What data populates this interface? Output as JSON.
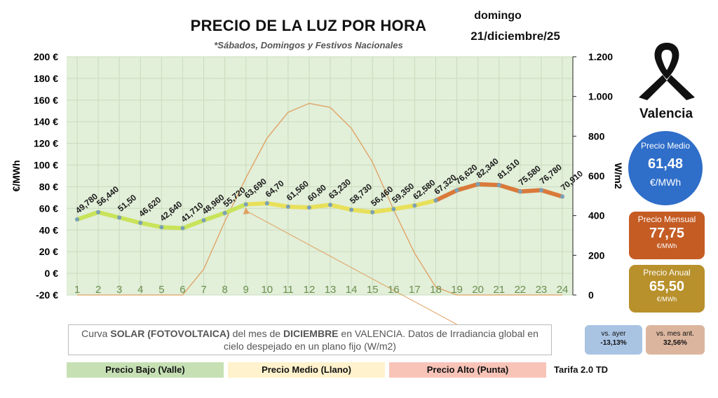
{
  "header": {
    "title": "PRECIO DE LA LUZ POR HORA",
    "subtitle": "*Sábados, Domingos y Festivos Nacionales",
    "day": "domingo",
    "date": "21/diciembre/25",
    "city": "Valencia"
  },
  "summary": {
    "medio_label": "Precio Medio",
    "medio_value": "61,48",
    "medio_unit": "€/MWh",
    "mensual_label": "Precio Mensual",
    "mensual_value": "77,75",
    "mensual_unit": "€/MWh",
    "anual_label": "Precio Anual",
    "anual_value": "65,50",
    "anual_unit": "€/MWh"
  },
  "comparison": {
    "ayer_label": "vs. ayer",
    "ayer_value": "-13,13%",
    "mes_label": "vs. mes ant.",
    "mes_value": "32,56%"
  },
  "note": {
    "p1": "Curva ",
    "b1": "SOLAR (FOTOVOLTAICA)",
    "p2": " del mes de ",
    "b2": "DICIEMBRE",
    "p3": " en VALENCIA. Datos de Irradiancia global en",
    "line2": "cielo despejado en un plano fijo (W/m2)"
  },
  "legend": {
    "bajo": "Precio Bajo (Valle)",
    "medio": "Precio Medio (Llano)",
    "alto": "Precio Alto (Punta)",
    "tarifa": "Tarifa 2.0 TD"
  },
  "colors": {
    "plot_bg": "#e2efd9",
    "price_low": "#c9e35a",
    "price_mid": "#e8e05a",
    "price_high": "#d97a3a",
    "solar": "#e0a060",
    "marker": "#7aa0b8",
    "medio": "#2f6ec9",
    "mensual": "#c45c24",
    "anual": "#b8902c"
  },
  "chart_data": {
    "type": "line",
    "x": [
      1,
      2,
      3,
      4,
      5,
      6,
      7,
      8,
      9,
      10,
      11,
      12,
      13,
      14,
      15,
      16,
      17,
      18,
      19,
      20,
      21,
      22,
      23,
      24
    ],
    "x_tick_labels": [
      "1",
      "2",
      "3",
      "4",
      "5",
      "6",
      "7",
      "8",
      "9",
      "10",
      "11",
      "12",
      "13",
      "14",
      "15",
      "16",
      "17",
      "18",
      "19",
      "20",
      "21",
      "22",
      "23",
      "24"
    ],
    "series": [
      {
        "axis": "left",
        "values": [
          49.78,
          56.44,
          51.5,
          46.62,
          42.64,
          41.71,
          48.96,
          55.72,
          63.69,
          64.7,
          61.56,
          60.8,
          63.23,
          58.73,
          56.46,
          59.35,
          62.58,
          67.32,
          76.62,
          82.34,
          81.51,
          75.58,
          76.78,
          70.91
        ],
        "labels": [
          "49,780",
          "56,440",
          "51,50",
          "46,620",
          "42,640",
          "41,710",
          "48,960",
          "55,720",
          "63,690",
          "64,70",
          "61,560",
          "60,80",
          "63,230",
          "58,730",
          "56,460",
          "59,350",
          "62,580",
          "67,320",
          "76,620",
          "82,340",
          "81,510",
          "75,580",
          "76,780",
          "70,910"
        ]
      },
      {
        "axis": "right",
        "values": [
          0,
          0,
          0,
          0,
          0,
          0,
          130,
          370,
          590,
          790,
          920,
          965,
          945,
          840,
          670,
          430,
          210,
          40,
          0,
          0,
          0,
          0,
          0,
          0
        ]
      }
    ],
    "ylabel": "€/MWh",
    "ylim": [
      -20,
      200
    ],
    "yticks": [
      -20,
      0,
      20,
      40,
      60,
      80,
      100,
      120,
      140,
      160,
      180,
      200
    ],
    "ytick_labels": [
      "-20 €",
      "0 €",
      "20 €",
      "40 €",
      "60 €",
      "80 €",
      "100 €",
      "120 €",
      "140 €",
      "160 €",
      "180 €",
      "200 €"
    ],
    "y2label": "W/m2",
    "y2lim": [
      0,
      1200
    ],
    "y2ticks": [
      0,
      200,
      400,
      600,
      800,
      1000,
      1200
    ],
    "y2tick_labels": [
      "0",
      "200",
      "400",
      "600",
      "800",
      "1.000",
      "1.200"
    ]
  }
}
